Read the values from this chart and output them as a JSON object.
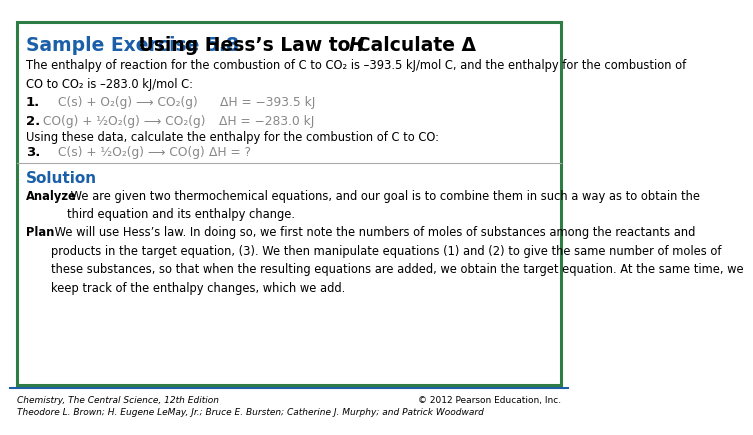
{
  "title_label": "Sample Exercise 5.8",
  "title_rest": " Using Hess’s Law to Calculate Δ",
  "title_italic": "H",
  "bg_color": "#ffffff",
  "border_color": "#2e7d45",
  "header_color": "#1a5fa8",
  "solution_color": "#1a5fa8",
  "intro_text": "The enthalpy of reaction for the combustion of C to CO₂ is –393.5 kJ/mol C, and the enthalpy for the combustion of\nCO to CO₂ is –283.0 kJ/mol C:",
  "eq1_label": "1.",
  "eq1_formula": "C(s) + O₂(g) ⟶ CO₂(g)",
  "eq1_dH": "ΔH = −393.5 kJ",
  "eq2_label": "2.",
  "eq2_formula": "CO(g) + ½O₂(g) ⟶ CO₂(g)",
  "eq2_dH": "ΔH = −283.0 kJ",
  "between_text": "Using these data, calculate the enthalpy for the combustion of C to CO:",
  "eq3_label": "3.",
  "eq3_formula": "C(s) + ½O₂(g) ⟶ CO(g)",
  "eq3_dH": "ΔH = ?",
  "solution_label": "Solution",
  "analyze_bold": "Analyze",
  "analyze_text": " We are given two thermochemical equations, and our goal is to combine them in such a way as to obtain the\nthird equation and its enthalpy change.",
  "plan_bold": "Plan",
  "plan_text": " We will use Hess’s law. In doing so, we first note the numbers of moles of substances among the reactants and\nproducts in the target equation, (3). We then manipulate equations (1) and (2) to give the same number of moles of\nthese substances, so that when the resulting equations are added, we obtain the target equation. At the same time, we\nkeep track of the enthalpy changes, which we add.",
  "footer_left1": "Chemistry, The Central Science, 12th Edition",
  "footer_left2": "Theodore L. Brown; H. Eugene LeMay, Jr.; Bruce E. Bursten; Catherine J. Murphy; and Patrick Woodward",
  "footer_right": "© 2012 Pearson Education, Inc.",
  "footer_line_color": "#1a5fa8",
  "gray_color": "#888888"
}
